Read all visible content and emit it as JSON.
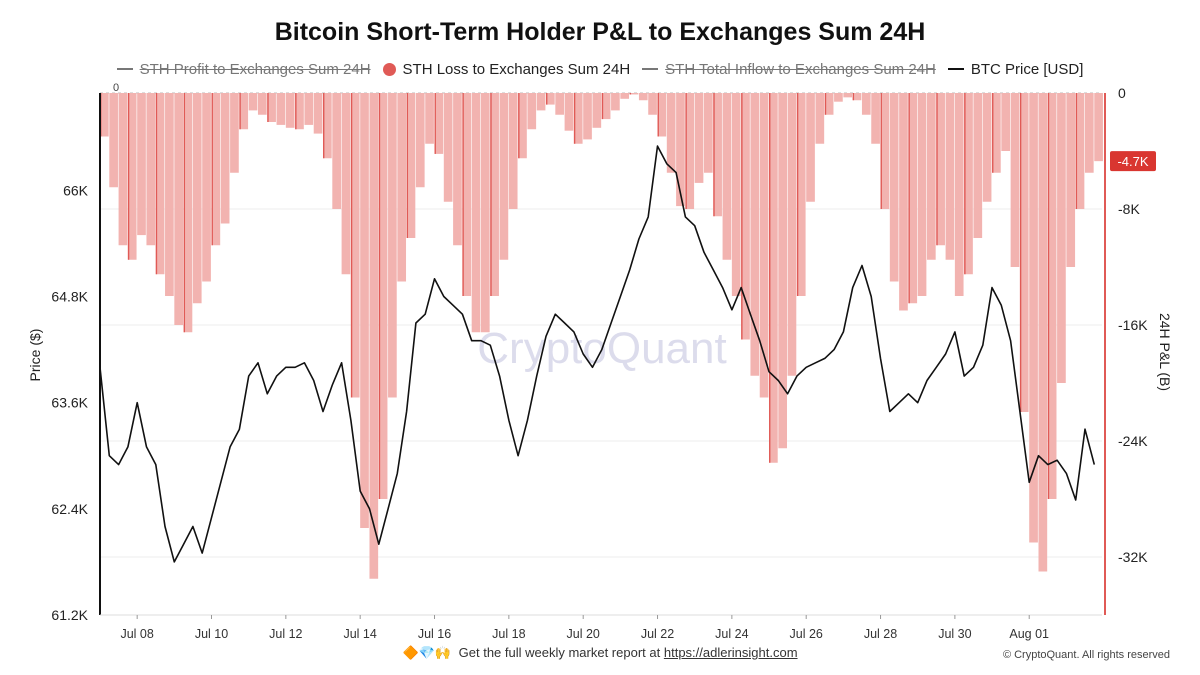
{
  "title": "Bitcoin Short-Term Holder P&L to Exchanges Sum 24H",
  "legend": [
    {
      "label": "STH Profit to Exchanges Sum 24H",
      "style": "line",
      "enabled": false
    },
    {
      "label": "STH Loss to Exchanges Sum 24H",
      "style": "dot",
      "enabled": true
    },
    {
      "label": "STH Total Inflow to  Exchanges Sum 24H",
      "style": "line",
      "enabled": false
    },
    {
      "label": "BTC Price [USD]",
      "style": "line",
      "enabled": true
    }
  ],
  "watermark": "CryptoQuant",
  "footer": {
    "emoji": "🔶💎🙌",
    "text": "Get the full weekly market report at",
    "link": "https://adlerinsight.com",
    "copyright": "© CryptoQuant. All rights reserved"
  },
  "colors": {
    "loss_bar": "#f2b3b0",
    "loss_bar_dark": "#e05a56",
    "price_line": "#111111",
    "badge": "#d93630"
  },
  "chart_data": {
    "type": "bar+line",
    "x_range": [
      "2024-07-07",
      "2024-08-02T23:00"
    ],
    "x_tick_labels": [
      "Jul 08",
      "Jul 10",
      "Jul 12",
      "Jul 14",
      "Jul 16",
      "Jul 18",
      "Jul 20",
      "Jul 22",
      "Jul 24",
      "Jul 26",
      "Jul 28",
      "Jul 30",
      "Aug 01"
    ],
    "x_tick_dates": [
      "2024-07-08",
      "2024-07-10",
      "2024-07-12",
      "2024-07-14",
      "2024-07-16",
      "2024-07-18",
      "2024-07-20",
      "2024-07-22",
      "2024-07-24",
      "2024-07-26",
      "2024-07-28",
      "2024-07-30",
      "2024-08-01"
    ],
    "y_left": {
      "label": "Price ($)",
      "min": 61200,
      "max": 67100,
      "ticks": [
        61200,
        62400,
        63600,
        64800,
        66000
      ],
      "tick_labels": [
        "61.2K",
        "62.4K",
        "63.6K",
        "64.8K",
        "66K"
      ]
    },
    "y_right": {
      "label": "24H P&L (B)",
      "min": -36000,
      "max": 0,
      "ticks": [
        0,
        -8000,
        -16000,
        -24000,
        -32000
      ],
      "tick_labels": [
        "0",
        "-8K",
        "-16K",
        "-24K",
        "-32K"
      ]
    },
    "top_left_tick": "0",
    "last_value_label": "-4.7K",
    "last_value": -4700,
    "series": [
      {
        "name": "STH Loss to Exchanges Sum 24H",
        "type": "bar",
        "x": [
          "2024-07-07T00:00",
          "2024-07-07T06:00",
          "2024-07-07T12:00",
          "2024-07-07T18:00",
          "2024-07-08T00:00",
          "2024-07-08T06:00",
          "2024-07-08T12:00",
          "2024-07-08T18:00",
          "2024-07-09T00:00",
          "2024-07-09T06:00",
          "2024-07-09T12:00",
          "2024-07-09T18:00",
          "2024-07-10T00:00",
          "2024-07-10T06:00",
          "2024-07-10T12:00",
          "2024-07-10T18:00",
          "2024-07-11T00:00",
          "2024-07-11T06:00",
          "2024-07-11T12:00",
          "2024-07-11T18:00",
          "2024-07-12T00:00",
          "2024-07-12T06:00",
          "2024-07-12T12:00",
          "2024-07-12T18:00",
          "2024-07-13T00:00",
          "2024-07-13T06:00",
          "2024-07-13T12:00",
          "2024-07-13T18:00",
          "2024-07-14T00:00",
          "2024-07-14T06:00",
          "2024-07-14T12:00",
          "2024-07-14T18:00",
          "2024-07-15T00:00",
          "2024-07-15T06:00",
          "2024-07-15T12:00",
          "2024-07-15T18:00",
          "2024-07-16T00:00",
          "2024-07-16T06:00",
          "2024-07-16T12:00",
          "2024-07-16T18:00",
          "2024-07-17T00:00",
          "2024-07-17T06:00",
          "2024-07-17T12:00",
          "2024-07-17T18:00",
          "2024-07-18T00:00",
          "2024-07-18T06:00",
          "2024-07-18T12:00",
          "2024-07-18T18:00",
          "2024-07-19T00:00",
          "2024-07-19T06:00",
          "2024-07-19T12:00",
          "2024-07-19T18:00",
          "2024-07-20T00:00",
          "2024-07-20T06:00",
          "2024-07-20T12:00",
          "2024-07-20T18:00",
          "2024-07-21T00:00",
          "2024-07-21T06:00",
          "2024-07-21T12:00",
          "2024-07-21T18:00",
          "2024-07-22T00:00",
          "2024-07-22T06:00",
          "2024-07-22T12:00",
          "2024-07-22T18:00",
          "2024-07-23T00:00",
          "2024-07-23T06:00",
          "2024-07-23T12:00",
          "2024-07-23T18:00",
          "2024-07-24T00:00",
          "2024-07-24T06:00",
          "2024-07-24T12:00",
          "2024-07-24T18:00",
          "2024-07-25T00:00",
          "2024-07-25T06:00",
          "2024-07-25T12:00",
          "2024-07-25T18:00",
          "2024-07-26T00:00",
          "2024-07-26T06:00",
          "2024-07-26T12:00",
          "2024-07-26T18:00",
          "2024-07-27T00:00",
          "2024-07-27T06:00",
          "2024-07-27T12:00",
          "2024-07-27T18:00",
          "2024-07-28T00:00",
          "2024-07-28T06:00",
          "2024-07-28T12:00",
          "2024-07-28T18:00",
          "2024-07-29T00:00",
          "2024-07-29T06:00",
          "2024-07-29T12:00",
          "2024-07-29T18:00",
          "2024-07-30T00:00",
          "2024-07-30T06:00",
          "2024-07-30T12:00",
          "2024-07-30T18:00",
          "2024-07-31T00:00",
          "2024-07-31T06:00",
          "2024-07-31T12:00",
          "2024-07-31T18:00",
          "2024-08-01T00:00",
          "2024-08-01T06:00",
          "2024-08-01T12:00",
          "2024-08-01T18:00",
          "2024-08-02T00:00",
          "2024-08-02T06:00",
          "2024-08-02T12:00",
          "2024-08-02T18:00"
        ],
        "values": [
          -3000,
          -6500,
          -10500,
          -11500,
          -9800,
          -10500,
          -12500,
          -14000,
          -16000,
          -16500,
          -14500,
          -13000,
          -10500,
          -9000,
          -5500,
          -2500,
          -1200,
          -1500,
          -2000,
          -2200,
          -2400,
          -2500,
          -2200,
          -2800,
          -4500,
          -8000,
          -12500,
          -21000,
          -30000,
          -33500,
          -28000,
          -21000,
          -13000,
          -10000,
          -6500,
          -3500,
          -4200,
          -7500,
          -10500,
          -14000,
          -16500,
          -16500,
          -14000,
          -11500,
          -8000,
          -4500,
          -2500,
          -1200,
          -800,
          -1500,
          -2600,
          -3500,
          -3200,
          -2400,
          -1800,
          -1200,
          -400,
          -100,
          -500,
          -1500,
          -3000,
          -5500,
          -7800,
          -8000,
          -6200,
          -5500,
          -8500,
          -11500,
          -14000,
          -17000,
          -19500,
          -21000,
          -25500,
          -24500,
          -19500,
          -14000,
          -7500,
          -3500,
          -1500,
          -600,
          -300,
          -500,
          -1500,
          -3500,
          -8000,
          -13000,
          -15000,
          -14500,
          -14000,
          -11500,
          -10500,
          -11500,
          -14000,
          -12500,
          -10000,
          -7500,
          -5500,
          -4000,
          -12000,
          -22000,
          -31000,
          -33000,
          -28000,
          -20000,
          -12000,
          -8000,
          -5500,
          -4700
        ]
      },
      {
        "name": "BTC Price [USD]",
        "type": "line",
        "x": [
          "2024-07-07T00:00",
          "2024-07-07T06:00",
          "2024-07-07T12:00",
          "2024-07-07T18:00",
          "2024-07-08T00:00",
          "2024-07-08T06:00",
          "2024-07-08T12:00",
          "2024-07-08T18:00",
          "2024-07-09T00:00",
          "2024-07-09T06:00",
          "2024-07-09T12:00",
          "2024-07-09T18:00",
          "2024-07-10T00:00",
          "2024-07-10T06:00",
          "2024-07-10T12:00",
          "2024-07-10T18:00",
          "2024-07-11T00:00",
          "2024-07-11T06:00",
          "2024-07-11T12:00",
          "2024-07-11T18:00",
          "2024-07-12T00:00",
          "2024-07-12T06:00",
          "2024-07-12T12:00",
          "2024-07-12T18:00",
          "2024-07-13T00:00",
          "2024-07-13T06:00",
          "2024-07-13T12:00",
          "2024-07-13T18:00",
          "2024-07-14T00:00",
          "2024-07-14T06:00",
          "2024-07-14T12:00",
          "2024-07-14T18:00",
          "2024-07-15T00:00",
          "2024-07-15T06:00",
          "2024-07-15T12:00",
          "2024-07-15T18:00",
          "2024-07-16T00:00",
          "2024-07-16T06:00",
          "2024-07-16T12:00",
          "2024-07-16T18:00",
          "2024-07-17T00:00",
          "2024-07-17T06:00",
          "2024-07-17T12:00",
          "2024-07-17T18:00",
          "2024-07-18T00:00",
          "2024-07-18T06:00",
          "2024-07-18T12:00",
          "2024-07-18T18:00",
          "2024-07-19T00:00",
          "2024-07-19T06:00",
          "2024-07-19T12:00",
          "2024-07-19T18:00",
          "2024-07-20T00:00",
          "2024-07-20T06:00",
          "2024-07-20T12:00",
          "2024-07-20T18:00",
          "2024-07-21T00:00",
          "2024-07-21T06:00",
          "2024-07-21T12:00",
          "2024-07-21T18:00",
          "2024-07-22T00:00",
          "2024-07-22T06:00",
          "2024-07-22T12:00",
          "2024-07-22T18:00",
          "2024-07-23T00:00",
          "2024-07-23T06:00",
          "2024-07-23T12:00",
          "2024-07-23T18:00",
          "2024-07-24T00:00",
          "2024-07-24T06:00",
          "2024-07-24T12:00",
          "2024-07-24T18:00",
          "2024-07-25T00:00",
          "2024-07-25T06:00",
          "2024-07-25T12:00",
          "2024-07-25T18:00",
          "2024-07-26T00:00",
          "2024-07-26T06:00",
          "2024-07-26T12:00",
          "2024-07-26T18:00",
          "2024-07-27T00:00",
          "2024-07-27T06:00",
          "2024-07-27T12:00",
          "2024-07-27T18:00",
          "2024-07-28T00:00",
          "2024-07-28T06:00",
          "2024-07-28T12:00",
          "2024-07-28T18:00",
          "2024-07-29T00:00",
          "2024-07-29T06:00",
          "2024-07-29T12:00",
          "2024-07-29T18:00",
          "2024-07-30T00:00",
          "2024-07-30T06:00",
          "2024-07-30T12:00",
          "2024-07-30T18:00",
          "2024-07-31T00:00",
          "2024-07-31T06:00",
          "2024-07-31T12:00",
          "2024-07-31T18:00",
          "2024-08-01T00:00",
          "2024-08-01T06:00",
          "2024-08-01T12:00",
          "2024-08-01T18:00",
          "2024-08-02T00:00",
          "2024-08-02T06:00",
          "2024-08-02T12:00",
          "2024-08-02T18:00"
        ],
        "values": [
          64000,
          63000,
          62900,
          63100,
          63600,
          63100,
          62900,
          62200,
          61800,
          62000,
          62200,
          61900,
          62300,
          62700,
          63100,
          63300,
          63900,
          64050,
          63700,
          63900,
          64000,
          64000,
          64050,
          63850,
          63500,
          63800,
          64050,
          63400,
          62600,
          62400,
          62000,
          62400,
          62800,
          63500,
          64500,
          64600,
          65000,
          64800,
          64700,
          64600,
          64300,
          64300,
          64250,
          63900,
          63400,
          63000,
          63400,
          63900,
          64350,
          64600,
          64500,
          64400,
          64150,
          64000,
          64200,
          64500,
          64800,
          65100,
          65450,
          65700,
          66500,
          66300,
          66200,
          65700,
          65600,
          65300,
          65100,
          64900,
          64650,
          64900,
          64600,
          64300,
          63950,
          63850,
          63700,
          63900,
          64000,
          64050,
          64100,
          64200,
          64400,
          64900,
          65150,
          64800,
          64100,
          63500,
          63600,
          63700,
          63600,
          63850,
          64000,
          64150,
          64400,
          63900,
          64000,
          64250,
          64900,
          64700,
          64300,
          63500,
          62700,
          63000,
          62900,
          62950,
          62800,
          62500,
          63300,
          62900
        ]
      }
    ]
  }
}
